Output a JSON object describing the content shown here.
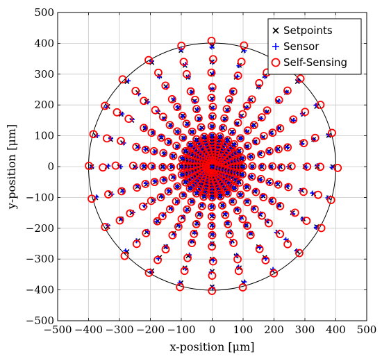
{
  "chart_data": {
    "type": "scatter",
    "title": "",
    "xlabel": "x-position [μm]",
    "ylabel": "y-position [μm]",
    "xlim": [
      -500,
      500
    ],
    "ylim": [
      -500,
      500
    ],
    "xticks": [
      -500,
      -400,
      -300,
      -200,
      -100,
      0,
      100,
      200,
      300,
      400,
      500
    ],
    "yticks": [
      -500,
      -400,
      -300,
      -200,
      -100,
      0,
      100,
      200,
      300,
      400,
      500
    ],
    "grid": true,
    "legend_position": "top-right",
    "boundary_circle_radius": 400,
    "setpoint_pattern": {
      "rays": 24,
      "ray_step_degrees": 15,
      "radii": [
        10,
        20,
        30,
        40,
        50,
        60,
        70,
        80,
        90,
        100,
        130,
        160,
        190,
        220,
        250,
        300,
        340,
        390
      ]
    },
    "series": [
      {
        "name": "Setpoints",
        "marker": "x",
        "color": "#000000"
      },
      {
        "name": "Sensor",
        "marker": "+",
        "color": "#0000ff"
      },
      {
        "name": "Self-Sensing",
        "marker": "o",
        "color": "#ff0000"
      }
    ]
  }
}
